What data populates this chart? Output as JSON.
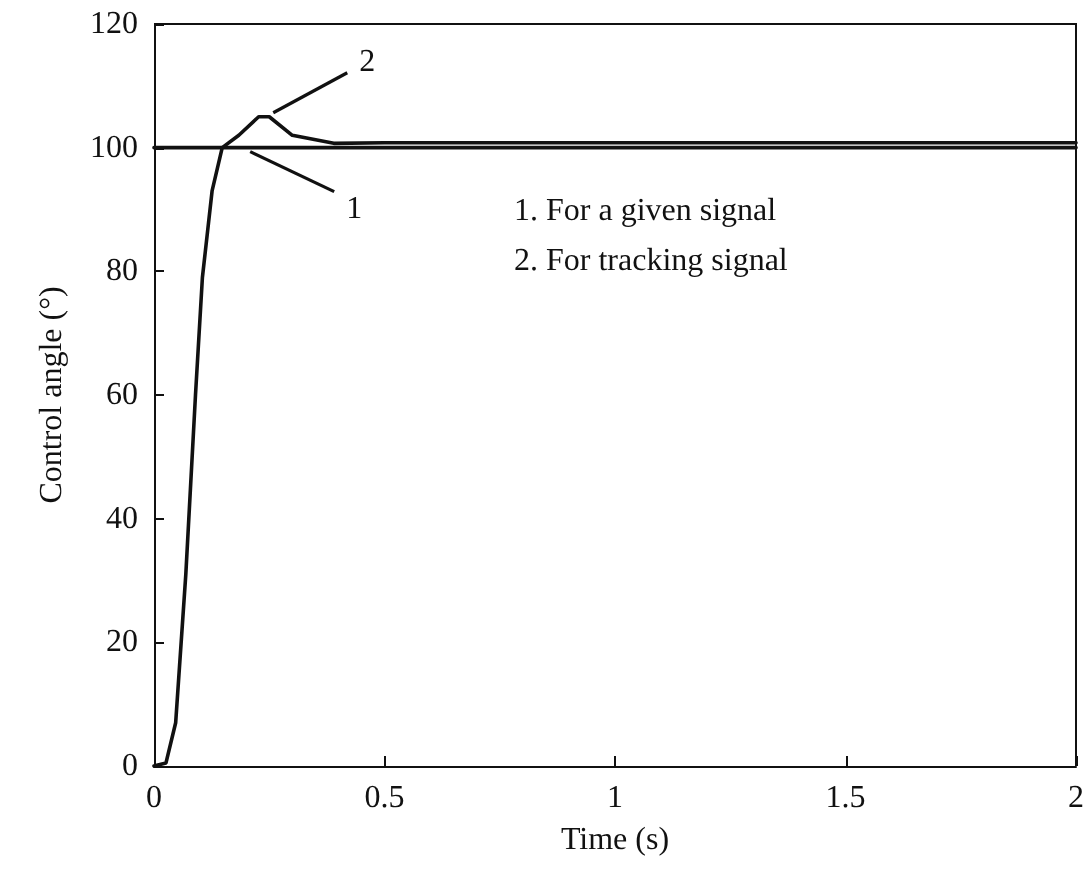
{
  "chart_data": {
    "type": "line",
    "xlabel": "Time (s)",
    "ylabel": "Control angle (°)",
    "xlim": [
      0,
      2
    ],
    "xticks": [
      0,
      0.5,
      1,
      1.5,
      2
    ],
    "ylim": [
      0,
      120
    ],
    "yticks": [
      0,
      20,
      40,
      60,
      80,
      100,
      120
    ],
    "grid": false,
    "marker": "none",
    "line_style": "solid",
    "series": [
      {
        "color": "#111111",
        "x": [
          0,
          2
        ],
        "values": [
          100,
          100
        ]
      },
      {
        "color": "#111111",
        "x": [
          0,
          0.026,
          0.047,
          0.069,
          0.09,
          0.105,
          0.126,
          0.148,
          0.184,
          0.227,
          0.25,
          0.3,
          0.39,
          0.5,
          1,
          1.5,
          2
        ],
        "values": [
          0,
          0.5,
          7,
          31,
          60,
          79,
          93,
          100,
          102,
          105,
          105,
          102,
          100.7,
          100.8,
          100.8,
          100.8,
          100.8
        ]
      }
    ],
    "annotations": [
      {
        "text": "1",
        "x": 0.2,
        "y": 100
      },
      {
        "text": "2",
        "x": 0.25,
        "y": 105
      },
      "1. For a given signal",
      "2. For tracking signal"
    ]
  }
}
